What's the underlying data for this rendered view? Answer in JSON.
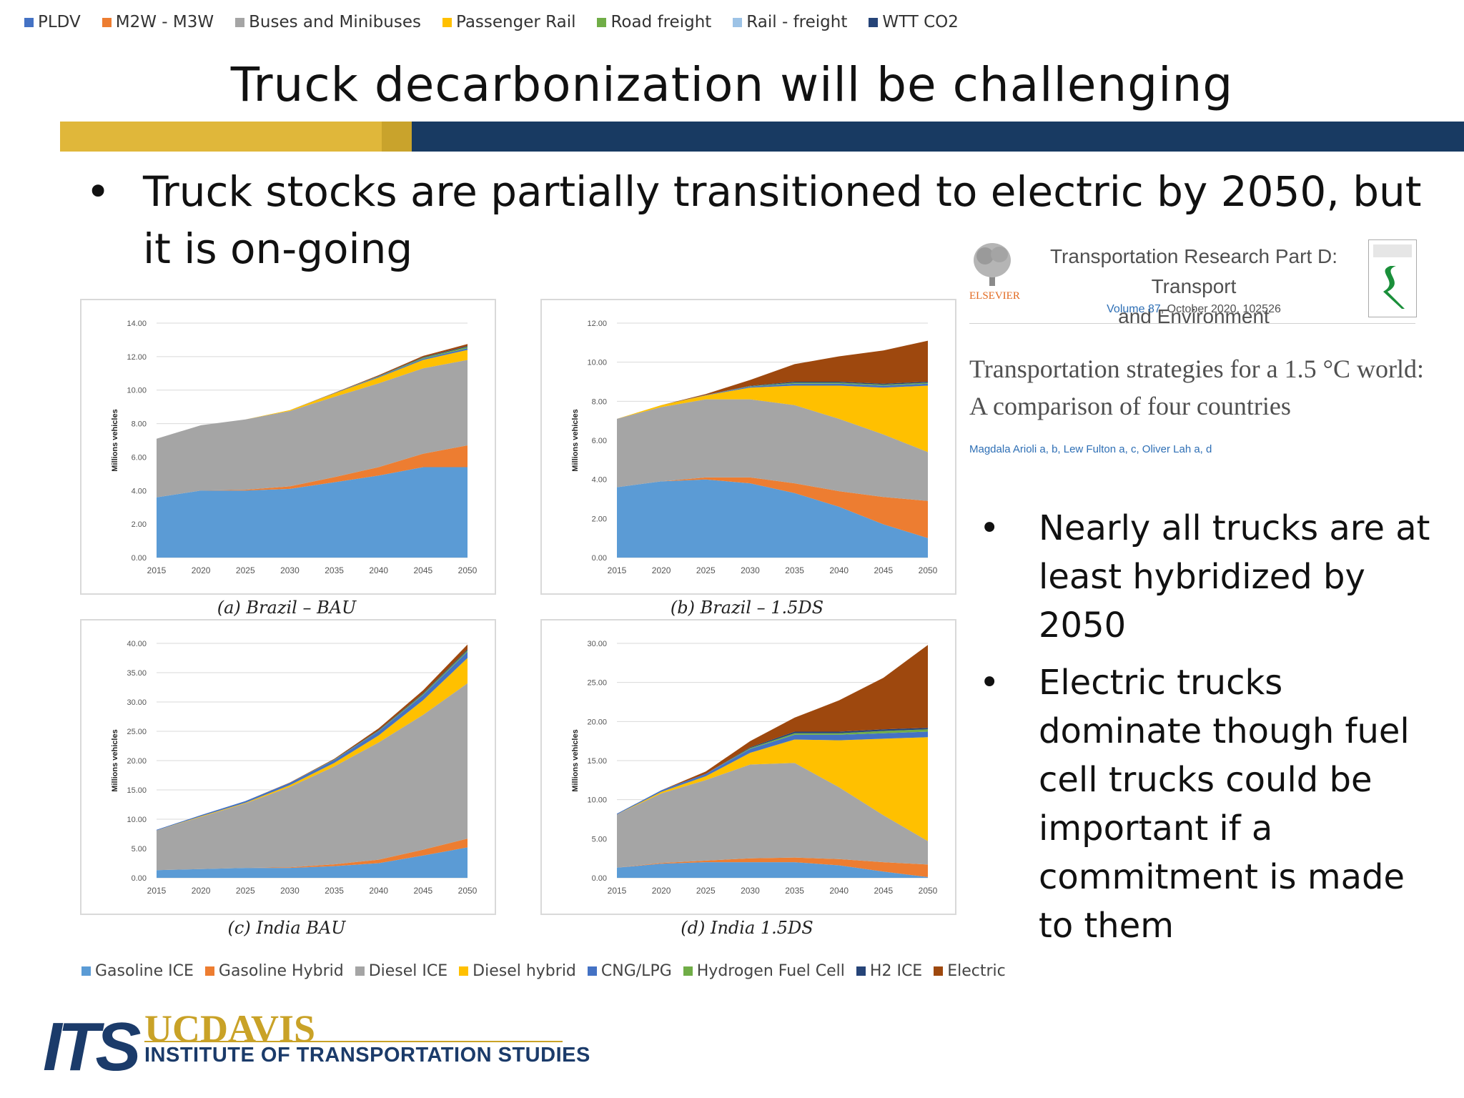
{
  "top_legend": [
    {
      "label": "PLDV",
      "color": "#4472c4"
    },
    {
      "label": "M2W - M3W",
      "color": "#ed7d31"
    },
    {
      "label": "Buses and Minibuses",
      "color": "#a5a5a5"
    },
    {
      "label": "Passenger Rail",
      "color": "#ffc000"
    },
    {
      "label": "Road freight",
      "color": "#70ad47"
    },
    {
      "label": "Rail - freight",
      "color": "#9dc3e6"
    },
    {
      "label": "WTT CO2",
      "color": "#264478"
    }
  ],
  "slide": {
    "title": "Truck decarbonization will be challenging",
    "bullet_1": "Truck stocks are partially transitioned to electric by 2050, but it is on-going",
    "bullet_2": "Nearly all trucks are at least hybridized by 2050",
    "bullet_3": "Electric trucks dominate though fuel cell trucks could be important if a commitment is made to them",
    "bullet_glyph": "•"
  },
  "journal": {
    "publisher": "ELSEVIER",
    "name_line1": "Transportation Research Part D: Transport",
    "name_line2": "and Environment",
    "volume_link": "Volume 87",
    "volume_rest": ", October 2020, 102526",
    "article_line1": "Transportation strategies for a 1.5 °C world:",
    "article_line2": "A comparison of four countries",
    "authors": "Magdala Arioli a, b, Lew Fulton a, c, Oliver Lah a, d"
  },
  "bottom_legend": [
    {
      "label": "Gasoline ICE",
      "color": "#5b9bd5"
    },
    {
      "label": "Gasoline Hybrid",
      "color": "#ed7d31"
    },
    {
      "label": "Diesel ICE",
      "color": "#a5a5a5"
    },
    {
      "label": "Diesel hybrid",
      "color": "#ffc000"
    },
    {
      "label": "CNG/LPG",
      "color": "#4472c4"
    },
    {
      "label": "Hydrogen Fuel Cell",
      "color": "#70ad47"
    },
    {
      "label": "H2 ICE",
      "color": "#264478"
    },
    {
      "label": "Electric",
      "color": "#9e480e"
    }
  ],
  "logo": {
    "its": "ITS",
    "uc": "UCDAVIS",
    "institute": "INSTITUTE OF TRANSPORTATION STUDIES"
  },
  "chart_data": [
    {
      "type": "area",
      "caption": "(a) Brazil – BAU",
      "ylabel": "Millions vehicles",
      "x": [
        2015,
        2020,
        2025,
        2030,
        2035,
        2040,
        2045,
        2050
      ],
      "ylim": [
        0,
        14
      ],
      "yticks": [
        "0.00",
        "2.00",
        "4.00",
        "6.00",
        "8.00",
        "10.00",
        "12.00",
        "14.00"
      ],
      "series": [
        {
          "name": "Gasoline ICE",
          "values": [
            3.6,
            4.0,
            4.0,
            4.1,
            4.5,
            4.9,
            5.4,
            5.4
          ]
        },
        {
          "name": "Gasoline Hybrid",
          "values": [
            0,
            0,
            0.05,
            0.15,
            0.3,
            0.5,
            0.8,
            1.3
          ]
        },
        {
          "name": "Diesel ICE",
          "values": [
            3.5,
            3.9,
            4.2,
            4.5,
            4.8,
            5.0,
            5.1,
            5.1
          ]
        },
        {
          "name": "Diesel hybrid",
          "values": [
            0,
            0,
            0,
            0.05,
            0.2,
            0.35,
            0.5,
            0.6
          ]
        },
        {
          "name": "CNG/LPG",
          "values": [
            0,
            0,
            0,
            0,
            0.02,
            0.05,
            0.08,
            0.1
          ]
        },
        {
          "name": "Hydrogen Fuel Cell",
          "values": [
            0,
            0,
            0,
            0,
            0,
            0.02,
            0.05,
            0.08
          ]
        },
        {
          "name": "H2 ICE",
          "values": [
            0,
            0,
            0,
            0,
            0,
            0.02,
            0.03,
            0.05
          ]
        },
        {
          "name": "Electric",
          "values": [
            0,
            0,
            0,
            0,
            0.02,
            0.05,
            0.08,
            0.12
          ]
        }
      ]
    },
    {
      "type": "area",
      "caption": "(b) Brazil – 1.5DS",
      "ylabel": "Millions vehicles",
      "x": [
        2015,
        2020,
        2025,
        2030,
        2035,
        2040,
        2045,
        2050
      ],
      "ylim": [
        0,
        12
      ],
      "yticks": [
        "0.00",
        "2.00",
        "4.00",
        "6.00",
        "8.00",
        "10.00",
        "12.00"
      ],
      "series": [
        {
          "name": "Gasoline ICE",
          "values": [
            3.6,
            3.9,
            4.0,
            3.8,
            3.3,
            2.6,
            1.7,
            1.0
          ]
        },
        {
          "name": "Gasoline Hybrid",
          "values": [
            0,
            0,
            0.1,
            0.3,
            0.5,
            0.8,
            1.4,
            1.9
          ]
        },
        {
          "name": "Diesel ICE",
          "values": [
            3.5,
            3.8,
            4.0,
            4.0,
            4.0,
            3.7,
            3.2,
            2.5
          ]
        },
        {
          "name": "Diesel hybrid",
          "values": [
            0,
            0.1,
            0.2,
            0.6,
            1.0,
            1.7,
            2.4,
            3.4
          ]
        },
        {
          "name": "CNG/LPG",
          "values": [
            0,
            0,
            0.02,
            0.05,
            0.1,
            0.1,
            0.1,
            0.1
          ]
        },
        {
          "name": "Hydrogen Fuel Cell",
          "values": [
            0,
            0,
            0,
            0.02,
            0.05,
            0.05,
            0.05,
            0.05
          ]
        },
        {
          "name": "H2 ICE",
          "values": [
            0,
            0,
            0,
            0.02,
            0.05,
            0.05,
            0.05,
            0.05
          ]
        },
        {
          "name": "Electric",
          "values": [
            0,
            0,
            0.05,
            0.3,
            0.9,
            1.3,
            1.7,
            2.1
          ]
        }
      ]
    },
    {
      "type": "area",
      "caption": "(c) India BAU",
      "ylabel": "Millions vehicles",
      "x": [
        2015,
        2020,
        2025,
        2030,
        2035,
        2040,
        2045,
        2050
      ],
      "ylim": [
        0,
        40
      ],
      "yticks": [
        "0.00",
        "5.00",
        "10.00",
        "15.00",
        "20.00",
        "25.00",
        "30.00",
        "35.00",
        "40.00"
      ],
      "series": [
        {
          "name": "Gasoline ICE",
          "values": [
            1.3,
            1.5,
            1.7,
            1.7,
            2.0,
            2.5,
            3.8,
            5.2
          ]
        },
        {
          "name": "Gasoline Hybrid",
          "values": [
            0,
            0,
            0,
            0.1,
            0.3,
            0.6,
            1.0,
            1.5
          ]
        },
        {
          "name": "Diesel ICE",
          "values": [
            6.8,
            8.9,
            11.0,
            13.7,
            16.7,
            20.0,
            23.0,
            26.5
          ]
        },
        {
          "name": "Diesel hybrid",
          "values": [
            0,
            0.1,
            0.1,
            0.3,
            0.6,
            1.2,
            2.5,
            4.3
          ]
        },
        {
          "name": "CNG/LPG",
          "values": [
            0.1,
            0.2,
            0.3,
            0.4,
            0.5,
            0.7,
            0.9,
            1.1
          ]
        },
        {
          "name": "Hydrogen Fuel Cell",
          "values": [
            0,
            0,
            0,
            0,
            0.05,
            0.1,
            0.15,
            0.2
          ]
        },
        {
          "name": "H2 ICE",
          "values": [
            0,
            0,
            0,
            0,
            0.05,
            0.1,
            0.15,
            0.2
          ]
        },
        {
          "name": "Electric",
          "values": [
            0,
            0,
            0,
            0.05,
            0.1,
            0.3,
            0.5,
            0.8
          ]
        }
      ]
    },
    {
      "type": "area",
      "caption": "(d) India 1.5DS",
      "ylabel": "Millions vehicles",
      "x": [
        2015,
        2020,
        2025,
        2030,
        2035,
        2040,
        2045,
        2050
      ],
      "ylim": [
        0,
        30
      ],
      "yticks": [
        "0.00",
        "5.00",
        "10.00",
        "15.00",
        "20.00",
        "25.00",
        "30.00"
      ],
      "series": [
        {
          "name": "Gasoline ICE",
          "values": [
            1.3,
            1.8,
            2.0,
            2.0,
            2.0,
            1.6,
            0.8,
            0.1
          ]
        },
        {
          "name": "Gasoline Hybrid",
          "values": [
            0,
            0.1,
            0.2,
            0.5,
            0.6,
            0.8,
            1.2,
            1.6
          ]
        },
        {
          "name": "Diesel ICE",
          "values": [
            6.8,
            8.9,
            10.3,
            12.0,
            12.1,
            9.2,
            6.0,
            3.0
          ]
        },
        {
          "name": "Diesel hybrid",
          "values": [
            0,
            0.2,
            0.5,
            1.5,
            3.0,
            6.0,
            9.8,
            13.3
          ]
        },
        {
          "name": "CNG/LPG",
          "values": [
            0.1,
            0.2,
            0.3,
            0.5,
            0.6,
            0.7,
            0.7,
            0.7
          ]
        },
        {
          "name": "Hydrogen Fuel Cell",
          "values": [
            0,
            0,
            0,
            0.1,
            0.2,
            0.2,
            0.3,
            0.3
          ]
        },
        {
          "name": "H2 ICE",
          "values": [
            0,
            0,
            0,
            0.1,
            0.2,
            0.2,
            0.2,
            0.2
          ]
        },
        {
          "name": "Electric",
          "values": [
            0,
            0,
            0.3,
            0.8,
            1.8,
            4.0,
            6.6,
            10.6
          ]
        }
      ]
    }
  ]
}
